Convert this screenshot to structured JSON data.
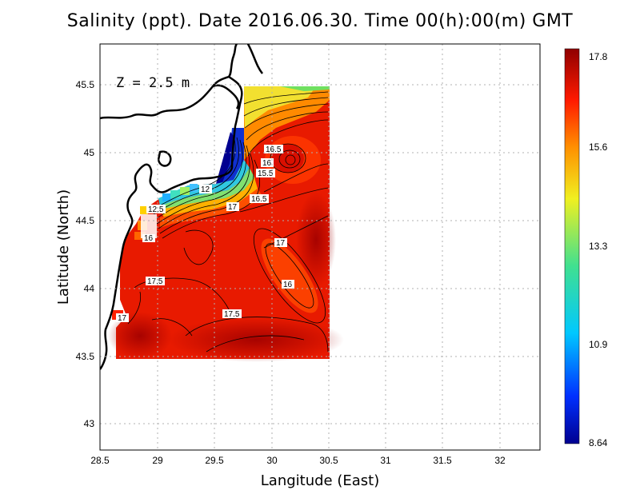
{
  "title": "Salinity (ppt). Date 2016.06.30. Time 00(h):00(m) GMT",
  "depth_label": "Z = 2.5 m",
  "x_axis_title": "Langitude (East)",
  "y_axis_title": "Latitude (North)",
  "x_ticks": [
    "28.5",
    "29",
    "29.5",
    "30",
    "30.5",
    "31",
    "31.5",
    "32"
  ],
  "y_ticks": [
    "43",
    "43.5",
    "44",
    "44.5",
    "45",
    "45.5"
  ],
  "colorbar_labels": [
    "17.8",
    "15.6",
    "13.3",
    "10.9",
    "8.64"
  ],
  "colorbar_range": [
    8.64,
    17.8
  ],
  "contour_labels": [
    "16.5",
    "16",
    "15.5",
    "12",
    "16.5",
    "12.5",
    "17",
    "17",
    "16",
    "17.5",
    "17",
    "17.5"
  ],
  "colors": {
    "high": "#8b0000",
    "mid": "#ff2000",
    "yellow": "#f0f020",
    "green": "#40d080",
    "cyan": "#00c8ff",
    "low": "#000090"
  }
}
